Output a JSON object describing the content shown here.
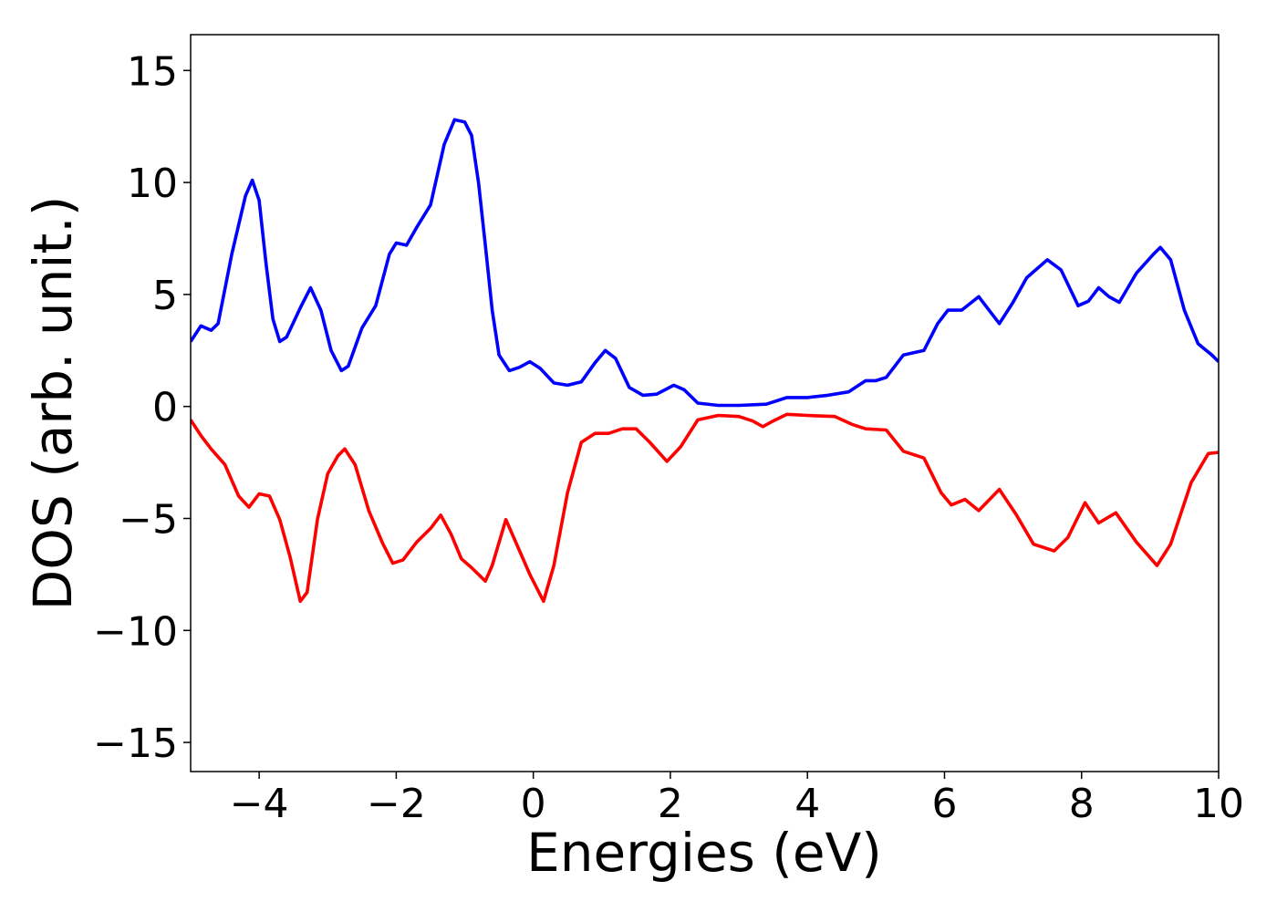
{
  "chart_data": {
    "type": "line",
    "x_label": "Energies (eV)",
    "y_label": "DOS (arb. unit.)",
    "xlim": [
      -5,
      10
    ],
    "ylim": [
      -16.3,
      16.6
    ],
    "xticks": [
      {
        "value": -4,
        "label": "−4"
      },
      {
        "value": -2,
        "label": "−2"
      },
      0,
      2,
      4,
      6,
      8,
      10
    ],
    "yticks": [
      {
        "value": -15,
        "label": "−15"
      },
      {
        "value": -10,
        "label": "−10"
      },
      {
        "value": -5,
        "label": "−5"
      },
      0,
      5,
      10,
      15
    ],
    "grid": false,
    "series": [
      {
        "color": "#0000ff",
        "x": [
          -5,
          -4.85,
          -4.7,
          -4.6,
          -4.4,
          -4.2,
          -4.1,
          -4.0,
          -3.9,
          -3.8,
          -3.7,
          -3.6,
          -3.4,
          -3.25,
          -3.1,
          -2.95,
          -2.8,
          -2.7,
          -2.5,
          -2.3,
          -2.1,
          -2.0,
          -1.85,
          -1.7,
          -1.5,
          -1.3,
          -1.15,
          -1.0,
          -0.9,
          -0.8,
          -0.7,
          -0.6,
          -0.5,
          -0.35,
          -0.2,
          -0.05,
          0.1,
          0.3,
          0.5,
          0.7,
          0.9,
          1.05,
          1.2,
          1.4,
          1.6,
          1.8,
          2.05,
          2.2,
          2.4,
          2.7,
          3.0,
          3.4,
          3.7,
          4.0,
          4.3,
          4.6,
          4.85,
          5.0,
          5.15,
          5.4,
          5.7,
          5.9,
          6.05,
          6.25,
          6.5,
          6.8,
          7.0,
          7.2,
          7.5,
          7.7,
          7.95,
          8.1,
          8.25,
          8.4,
          8.55,
          8.8,
          9.05,
          9.15,
          9.3,
          9.5,
          9.7,
          9.9,
          10.0
        ],
        "values": [
          2.9,
          3.6,
          3.4,
          3.7,
          6.8,
          9.4,
          10.1,
          9.2,
          6.4,
          3.9,
          2.9,
          3.1,
          4.4,
          5.3,
          4.3,
          2.5,
          1.6,
          1.8,
          3.5,
          4.5,
          6.8,
          7.3,
          7.2,
          8.0,
          9.0,
          11.7,
          12.8,
          12.7,
          12.1,
          10.0,
          7.2,
          4.3,
          2.3,
          1.6,
          1.75,
          2.0,
          1.7,
          1.05,
          0.95,
          1.1,
          1.95,
          2.5,
          2.15,
          0.85,
          0.5,
          0.55,
          0.95,
          0.75,
          0.15,
          0.05,
          0.05,
          0.1,
          0.4,
          0.4,
          0.5,
          0.65,
          1.15,
          1.15,
          1.3,
          2.3,
          2.5,
          3.7,
          4.3,
          4.3,
          4.9,
          3.7,
          4.65,
          5.75,
          6.55,
          6.1,
          4.5,
          4.7,
          5.3,
          4.9,
          4.65,
          5.95,
          6.8,
          7.1,
          6.55,
          4.3,
          2.8,
          2.3,
          2.0
        ]
      },
      {
        "color": "#ff0000",
        "x": [
          -5,
          -4.85,
          -4.7,
          -4.5,
          -4.3,
          -4.15,
          -4.0,
          -3.85,
          -3.7,
          -3.55,
          -3.4,
          -3.3,
          -3.15,
          -3.0,
          -2.85,
          -2.75,
          -2.6,
          -2.4,
          -2.2,
          -2.05,
          -1.9,
          -1.7,
          -1.5,
          -1.35,
          -1.2,
          -1.05,
          -0.9,
          -0.7,
          -0.6,
          -0.4,
          -0.25,
          -0.05,
          0.15,
          0.3,
          0.5,
          0.7,
          0.9,
          1.1,
          1.3,
          1.5,
          1.7,
          1.95,
          2.15,
          2.4,
          2.7,
          3.0,
          3.2,
          3.35,
          3.5,
          3.7,
          4.0,
          4.4,
          4.65,
          4.85,
          5.15,
          5.4,
          5.7,
          5.95,
          6.1,
          6.3,
          6.5,
          6.8,
          7.05,
          7.3,
          7.6,
          7.8,
          8.05,
          8.25,
          8.5,
          8.8,
          9.1,
          9.3,
          9.6,
          9.85,
          10
        ],
        "values": [
          -0.6,
          -1.3,
          -1.9,
          -2.6,
          -4.0,
          -4.5,
          -3.9,
          -4.0,
          -5.05,
          -6.7,
          -8.7,
          -8.3,
          -5.05,
          -3.0,
          -2.2,
          -1.9,
          -2.6,
          -4.65,
          -6.1,
          -7.0,
          -6.85,
          -6.05,
          -5.45,
          -4.85,
          -5.7,
          -6.8,
          -7.2,
          -7.8,
          -7.1,
          -5.05,
          -6.1,
          -7.5,
          -8.7,
          -7.1,
          -3.85,
          -1.6,
          -1.2,
          -1.2,
          -1.0,
          -1.0,
          -1.6,
          -2.45,
          -1.8,
          -0.6,
          -0.4,
          -0.45,
          -0.65,
          -0.9,
          -0.65,
          -0.35,
          -0.4,
          -0.45,
          -0.8,
          -1.0,
          -1.05,
          -2.0,
          -2.3,
          -3.85,
          -4.4,
          -4.15,
          -4.65,
          -3.7,
          -4.85,
          -6.15,
          -6.45,
          -5.85,
          -4.3,
          -5.2,
          -4.75,
          -6.05,
          -7.1,
          -6.15,
          -3.4,
          -2.1,
          -2.05
        ]
      }
    ]
  }
}
